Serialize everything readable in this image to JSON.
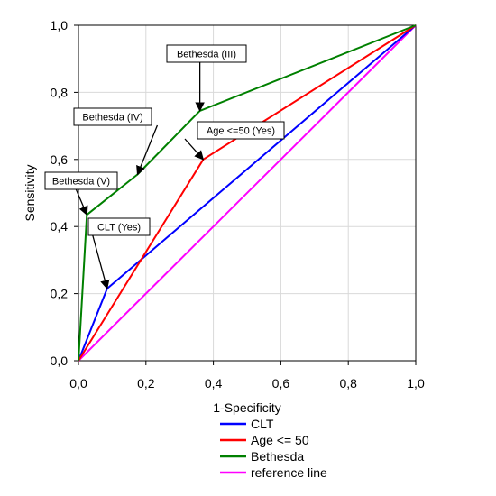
{
  "chart_data": {
    "type": "line",
    "title": "",
    "xlabel": "1-Specificity",
    "ylabel": "Sensitivity",
    "xlim": [
      0,
      1
    ],
    "ylim": [
      0,
      1
    ],
    "grid": true,
    "legend_position": "bottom",
    "x_ticks": [
      "0,0",
      "0,2",
      "0,4",
      "0,6",
      "0,8",
      "1,0"
    ],
    "y_ticks": [
      "0,0",
      "0,2",
      "0,4",
      "0,6",
      "0,8",
      "1,0"
    ],
    "series": [
      {
        "name": "CLT",
        "color": "#0000ff",
        "x": [
          0,
          0.085,
          1
        ],
        "y": [
          0,
          0.215,
          1
        ]
      },
      {
        "name": "Age <= 50",
        "color": "#ff0000",
        "x": [
          0,
          0.37,
          1
        ],
        "y": [
          0,
          0.6,
          1
        ]
      },
      {
        "name": "Bethesda",
        "color": "#008000",
        "x": [
          0,
          0.025,
          0.175,
          0.36,
          1
        ],
        "y": [
          0,
          0.435,
          0.555,
          0.745,
          1
        ]
      },
      {
        "name": "reference line",
        "color": "#ff00ff",
        "x": [
          0,
          1
        ],
        "y": [
          0,
          1
        ]
      }
    ],
    "annotations": [
      {
        "text": "Bethesda (III)",
        "target_x": 0.36,
        "target_y": 0.745
      },
      {
        "text": "Bethesda (IV)",
        "target_x": 0.175,
        "target_y": 0.555
      },
      {
        "text": "Bethesda (V)",
        "target_x": 0.025,
        "target_y": 0.435
      },
      {
        "text": "Age <=50 (Yes)",
        "target_x": 0.37,
        "target_y": 0.6
      },
      {
        "text": "CLT (Yes)",
        "target_x": 0.085,
        "target_y": 0.215
      }
    ]
  }
}
